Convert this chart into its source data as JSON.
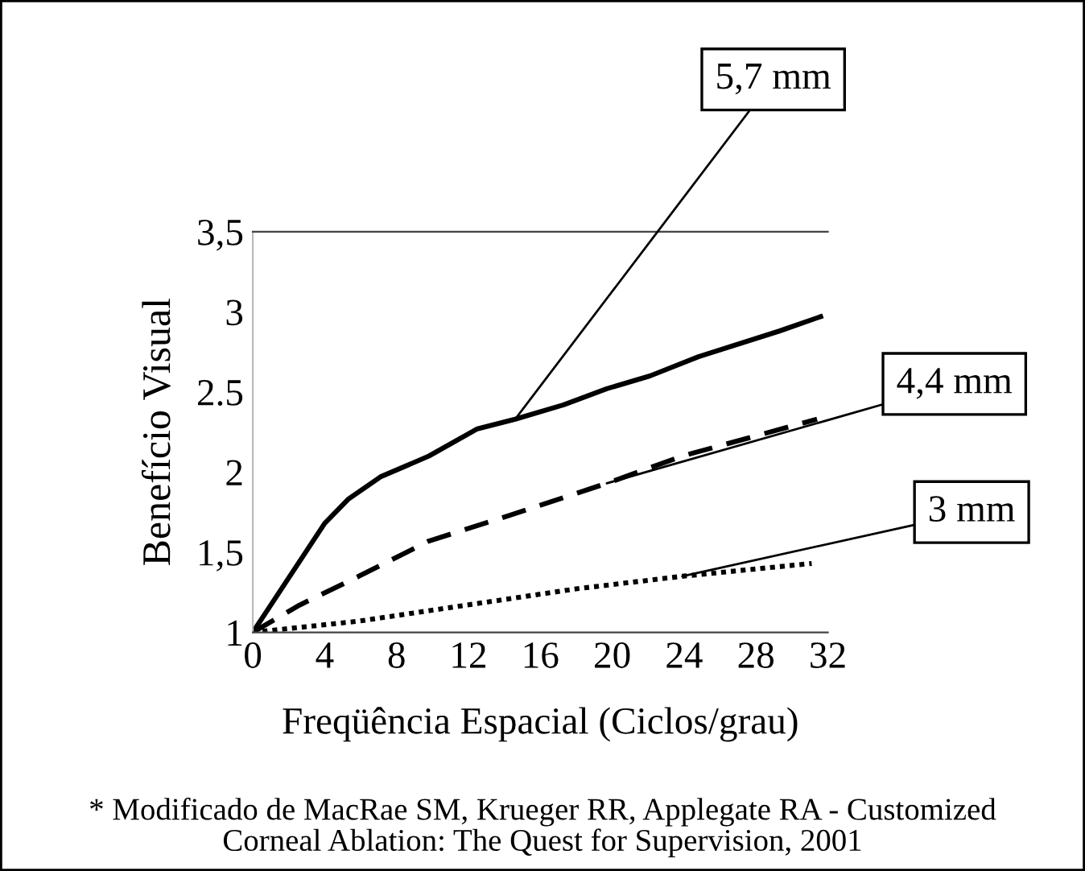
{
  "chart_data": {
    "type": "line",
    "xlabel": "Freqüência Espacial (Ciclos/grau)",
    "ylabel": "Benefício Visual",
    "xlim": [
      0,
      32
    ],
    "xticks": [
      0,
      4,
      8,
      12,
      16,
      20,
      24,
      28,
      32
    ],
    "ylim": [
      1,
      3.5
    ],
    "yticks": [
      {
        "value": 1,
        "label": "1"
      },
      {
        "value": 1.5,
        "label": "1,5"
      },
      {
        "value": 2,
        "label": "2"
      },
      {
        "value": 2.5,
        "label": "2.5"
      },
      {
        "value": 3,
        "label": "3"
      },
      {
        "value": 3.5,
        "label": "3,5"
      }
    ],
    "grid": false,
    "marker": "none",
    "series": [
      {
        "color": "#000000",
        "line_style": "solid",
        "x": [
          0,
          4,
          5.3,
          7.1,
          9.8,
          12.5,
          14.6,
          17.3,
          19.7,
          22.1,
          24.8,
          29.3,
          31.6
        ],
        "values": [
          1,
          1.68,
          1.83,
          1.97,
          2.1,
          2.27,
          2.33,
          2.42,
          2.52,
          2.6,
          2.72,
          2.88,
          2.97
        ]
      },
      {
        "color": "#000000",
        "line_style": "dashed",
        "x": [
          0,
          2.6,
          5.9,
          9.8,
          14.3,
          19.7,
          23.9,
          31.4
        ],
        "values": [
          1,
          1.17,
          1.35,
          1.57,
          1.73,
          1.93,
          2.1,
          2.33
        ]
      },
      {
        "color": "#000000",
        "line_style": "dotted",
        "x": [
          0,
          5.9,
          11.9,
          17.9,
          23.9,
          31.1
        ],
        "values": [
          1,
          1.07,
          1.17,
          1.27,
          1.35,
          1.43
        ]
      }
    ],
    "annotations": [
      {
        "text": "5,7 mm",
        "x": 14.6,
        "y": 2.33
      },
      {
        "text": "4,4 mm",
        "x": 19.7,
        "y": 1.93
      },
      {
        "text": "3 mm",
        "x": 23.9,
        "y": 1.35
      },
      "* Modificado de MacRae SM, Krueger RR, Applegate RA - Customized\nCorneal Ablation: The Quest for Supervision, 2001"
    ]
  }
}
